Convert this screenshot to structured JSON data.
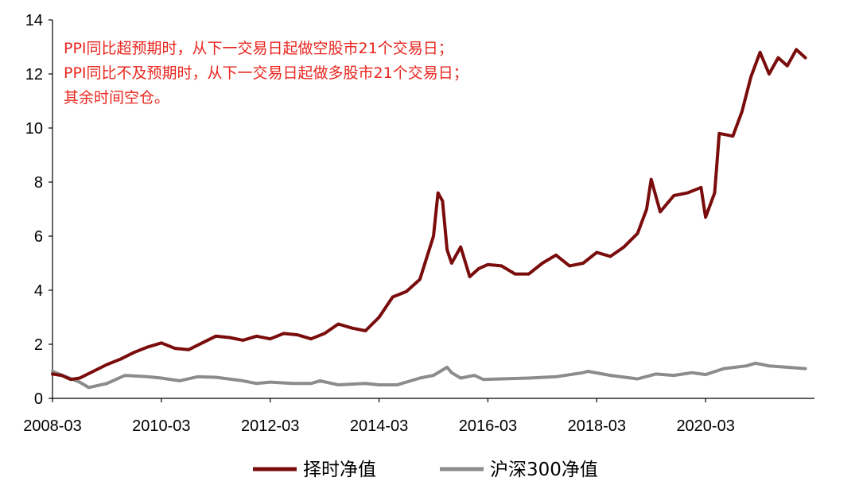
{
  "chart_data": {
    "type": "line",
    "title": "",
    "xlabel": "",
    "ylabel": "",
    "ylim": [
      0,
      14
    ],
    "yticks": [
      0,
      2,
      4,
      6,
      8,
      10,
      12,
      14
    ],
    "xlim": [
      "2008-03",
      "2022-03"
    ],
    "xticks": [
      "2008-03",
      "2010-03",
      "2012-03",
      "2014-03",
      "2016-03",
      "2018-03",
      "2020-03"
    ],
    "grid": false,
    "legend_position": "bottom",
    "annotation": [
      "PPI同比超预期时，从下一交易日起做空股市21个交易日；",
      "PPI同比不及预期时，从下一交易日起做多股市21个交易日；",
      "其余时间空仓。"
    ],
    "series": [
      {
        "name": "择时净值",
        "color": "#7a0c0c",
        "points": [
          [
            "2008-03",
            0.9
          ],
          [
            "2008-05",
            0.85
          ],
          [
            "2008-07",
            0.7
          ],
          [
            "2008-09",
            0.75
          ],
          [
            "2008-12",
            1.0
          ],
          [
            "2009-03",
            1.25
          ],
          [
            "2009-06",
            1.45
          ],
          [
            "2009-09",
            1.7
          ],
          [
            "2009-12",
            1.9
          ],
          [
            "2010-03",
            2.05
          ],
          [
            "2010-06",
            1.85
          ],
          [
            "2010-09",
            1.8
          ],
          [
            "2010-12",
            2.05
          ],
          [
            "2011-03",
            2.3
          ],
          [
            "2011-06",
            2.25
          ],
          [
            "2011-09",
            2.15
          ],
          [
            "2011-12",
            2.3
          ],
          [
            "2012-03",
            2.2
          ],
          [
            "2012-06",
            2.4
          ],
          [
            "2012-09",
            2.35
          ],
          [
            "2012-12",
            2.2
          ],
          [
            "2013-03",
            2.4
          ],
          [
            "2013-06",
            2.75
          ],
          [
            "2013-09",
            2.6
          ],
          [
            "2013-12",
            2.5
          ],
          [
            "2014-03",
            3.0
          ],
          [
            "2014-06",
            3.75
          ],
          [
            "2014-09",
            3.95
          ],
          [
            "2014-12",
            4.4
          ],
          [
            "2015-03",
            6.0
          ],
          [
            "2015-04",
            7.6
          ],
          [
            "2015-05",
            7.3
          ],
          [
            "2015-06",
            5.5
          ],
          [
            "2015-07",
            5.0
          ],
          [
            "2015-09",
            5.6
          ],
          [
            "2015-11",
            4.5
          ],
          [
            "2016-01",
            4.8
          ],
          [
            "2016-03",
            4.95
          ],
          [
            "2016-06",
            4.9
          ],
          [
            "2016-09",
            4.6
          ],
          [
            "2016-12",
            4.6
          ],
          [
            "2017-03",
            5.0
          ],
          [
            "2017-06",
            5.3
          ],
          [
            "2017-09",
            4.9
          ],
          [
            "2017-12",
            5.0
          ],
          [
            "2018-03",
            5.4
          ],
          [
            "2018-06",
            5.25
          ],
          [
            "2018-09",
            5.6
          ],
          [
            "2018-12",
            6.1
          ],
          [
            "2019-02",
            7.0
          ],
          [
            "2019-03",
            8.1
          ],
          [
            "2019-05",
            6.9
          ],
          [
            "2019-08",
            7.5
          ],
          [
            "2019-11",
            7.6
          ],
          [
            "2020-02",
            7.8
          ],
          [
            "2020-03",
            6.7
          ],
          [
            "2020-05",
            7.6
          ],
          [
            "2020-06",
            9.8
          ],
          [
            "2020-09",
            9.7
          ],
          [
            "2020-11",
            10.6
          ],
          [
            "2021-01",
            11.9
          ],
          [
            "2021-03",
            12.8
          ],
          [
            "2021-05",
            12.0
          ],
          [
            "2021-07",
            12.6
          ],
          [
            "2021-09",
            12.3
          ],
          [
            "2021-11",
            12.9
          ],
          [
            "2022-01",
            12.6
          ]
        ]
      },
      {
        "name": "沪深300净值",
        "color": "#8c8c8c",
        "points": [
          [
            "2008-03",
            1.0
          ],
          [
            "2008-06",
            0.8
          ],
          [
            "2008-09",
            0.6
          ],
          [
            "2008-11",
            0.4
          ],
          [
            "2009-03",
            0.55
          ],
          [
            "2009-07",
            0.85
          ],
          [
            "2009-12",
            0.8
          ],
          [
            "2010-03",
            0.75
          ],
          [
            "2010-07",
            0.65
          ],
          [
            "2010-11",
            0.8
          ],
          [
            "2011-03",
            0.78
          ],
          [
            "2011-09",
            0.65
          ],
          [
            "2011-12",
            0.55
          ],
          [
            "2012-03",
            0.6
          ],
          [
            "2012-08",
            0.55
          ],
          [
            "2012-12",
            0.55
          ],
          [
            "2013-02",
            0.65
          ],
          [
            "2013-06",
            0.5
          ],
          [
            "2013-12",
            0.55
          ],
          [
            "2014-03",
            0.5
          ],
          [
            "2014-07",
            0.5
          ],
          [
            "2014-12",
            0.75
          ],
          [
            "2015-03",
            0.85
          ],
          [
            "2015-06",
            1.15
          ],
          [
            "2015-07",
            0.95
          ],
          [
            "2015-09",
            0.75
          ],
          [
            "2015-12",
            0.85
          ],
          [
            "2016-02",
            0.7
          ],
          [
            "2016-06",
            0.72
          ],
          [
            "2016-12",
            0.75
          ],
          [
            "2017-06",
            0.8
          ],
          [
            "2017-12",
            0.95
          ],
          [
            "2018-01",
            1.0
          ],
          [
            "2018-06",
            0.85
          ],
          [
            "2018-12",
            0.72
          ],
          [
            "2019-04",
            0.9
          ],
          [
            "2019-08",
            0.85
          ],
          [
            "2019-12",
            0.95
          ],
          [
            "2020-03",
            0.88
          ],
          [
            "2020-07",
            1.1
          ],
          [
            "2020-12",
            1.2
          ],
          [
            "2021-02",
            1.3
          ],
          [
            "2021-05",
            1.2
          ],
          [
            "2021-09",
            1.15
          ],
          [
            "2022-01",
            1.1
          ]
        ]
      }
    ]
  }
}
